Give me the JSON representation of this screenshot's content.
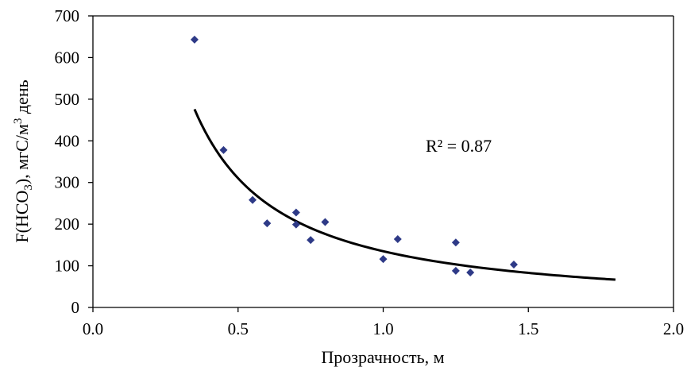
{
  "chart_data": {
    "type": "scatter",
    "xlabel": "Прозрачность, м",
    "ylabel": {
      "prefix": "F(HCO",
      "sub": "3",
      "middle": "), мгС/м",
      "sup": "3",
      "suffix": " день"
    },
    "xlim": [
      0.0,
      2.0
    ],
    "ylim": [
      0,
      700
    ],
    "x_ticks": [
      "0.0",
      "0.5",
      "1.0",
      "1.5",
      "2.0"
    ],
    "y_ticks": [
      "0",
      "100",
      "200",
      "300",
      "400",
      "500",
      "600",
      "700"
    ],
    "grid": false,
    "legend": "none",
    "marker_color": "#2e3a87",
    "series": [
      {
        "points": [
          {
            "x": 0.35,
            "y": 643
          },
          {
            "x": 0.45,
            "y": 378
          },
          {
            "x": 0.55,
            "y": 258
          },
          {
            "x": 0.6,
            "y": 202
          },
          {
            "x": 0.7,
            "y": 228
          },
          {
            "x": 0.7,
            "y": 199
          },
          {
            "x": 0.75,
            "y": 162
          },
          {
            "x": 0.8,
            "y": 205
          },
          {
            "x": 1.0,
            "y": 116
          },
          {
            "x": 1.05,
            "y": 164
          },
          {
            "x": 1.25,
            "y": 156
          },
          {
            "x": 1.25,
            "y": 88
          },
          {
            "x": 1.3,
            "y": 84
          },
          {
            "x": 1.45,
            "y": 103
          }
        ]
      }
    ],
    "trendline": {
      "type": "power",
      "x_range": [
        0.35,
        1.8
      ],
      "a": 135,
      "b": -1.2,
      "color": "#000000"
    },
    "annotation": "R² = 0.87"
  }
}
